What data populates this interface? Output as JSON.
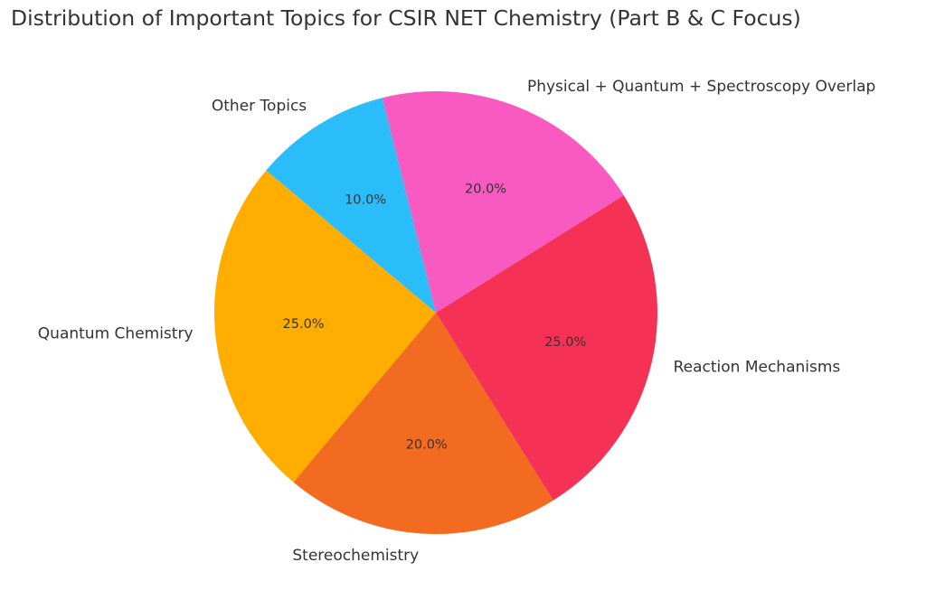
{
  "chart_data": {
    "type": "pie",
    "title": "Distribution of Important Topics for CSIR NET Chemistry (Part B & C Focus)",
    "startangle": 140,
    "direction": "counterclockwise",
    "autopct_format": "%1.1f%%",
    "slices": [
      {
        "label": "Quantum Chemistry",
        "value": 25,
        "pct_label": "25.0%",
        "color": "#FFAE00"
      },
      {
        "label": "Stereochemistry",
        "value": 20,
        "pct_label": "20.0%",
        "color": "#F26B21"
      },
      {
        "label": "Reaction Mechanisms",
        "value": 25,
        "pct_label": "25.0%",
        "color": "#F53255"
      },
      {
        "label": "Physical + Quantum + Spectroscopy Overlap",
        "value": 20,
        "pct_label": "20.0%",
        "color": "#F85AC2"
      },
      {
        "label": "Other Topics",
        "value": 10,
        "pct_label": "10.0%",
        "color": "#2BBDFA"
      }
    ],
    "legend": "none"
  }
}
